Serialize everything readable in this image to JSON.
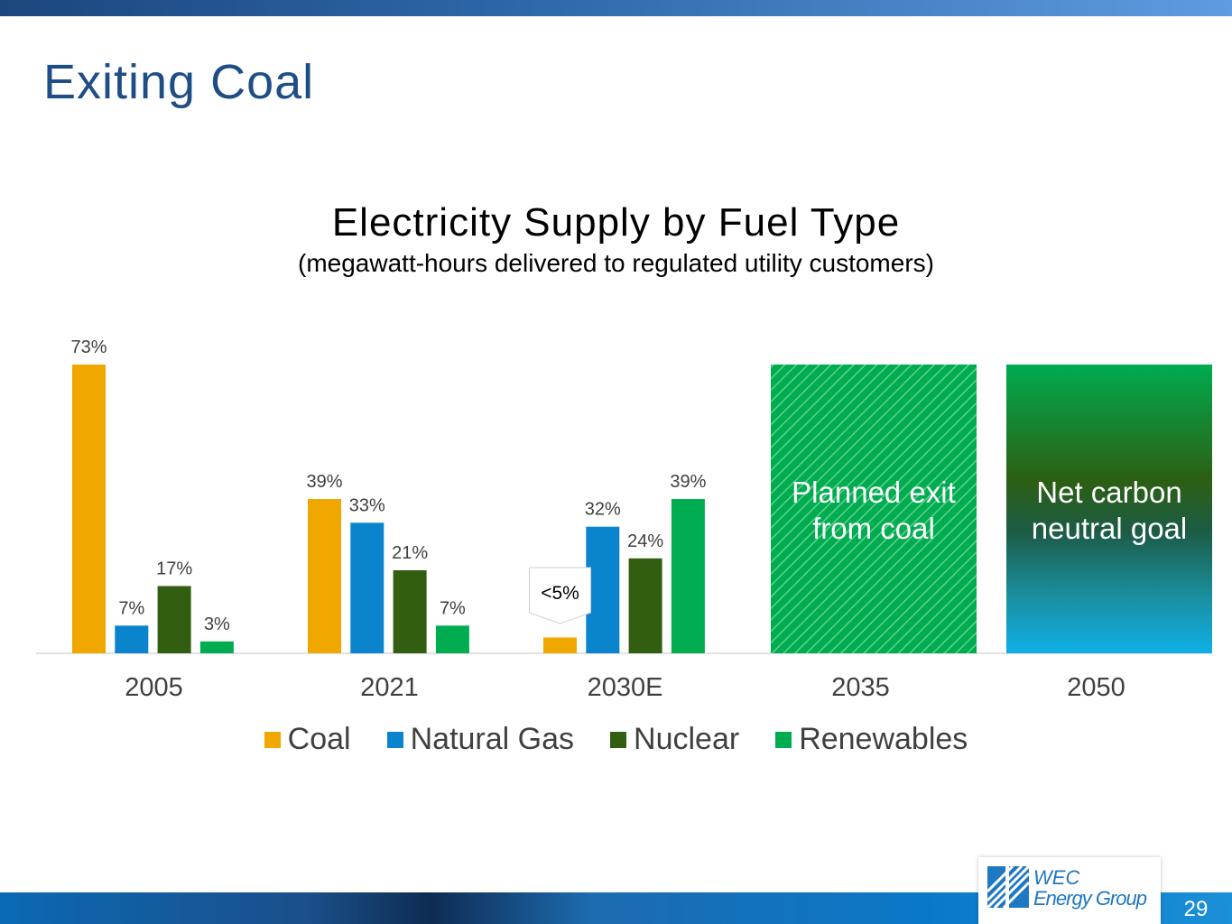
{
  "slide": {
    "title": "Exiting Coal",
    "page_number": "29",
    "logo": {
      "line1": "WEC",
      "line2": "Energy Group"
    }
  },
  "chart_data": {
    "type": "bar",
    "title": "Electricity Supply by Fuel Type",
    "subtitle": "(megawatt-hours delivered to regulated utility customers)",
    "categories": [
      "2005",
      "2021",
      "2030E",
      "2035",
      "2050"
    ],
    "series": [
      {
        "name": "Coal",
        "color": "#f0a800",
        "values": [
          73,
          39,
          4,
          null,
          null
        ],
        "labels": [
          "73%",
          "39%",
          "",
          "",
          ""
        ]
      },
      {
        "name": "Natural Gas",
        "color": "#0a84cc",
        "values": [
          7,
          33,
          32,
          null,
          null
        ],
        "labels": [
          "7%",
          "33%",
          "32%",
          "",
          ""
        ]
      },
      {
        "name": "Nuclear",
        "color": "#325e11",
        "values": [
          17,
          21,
          24,
          null,
          null
        ],
        "labels": [
          "17%",
          "21%",
          "24%",
          "",
          ""
        ]
      },
      {
        "name": "Renewables",
        "color": "#00ac50",
        "values": [
          3,
          7,
          39,
          null,
          null
        ],
        "labels": [
          "3%",
          "7%",
          "39%",
          "",
          ""
        ]
      }
    ],
    "callout": {
      "category": "2030E",
      "series": "Coal",
      "text": "<5%"
    },
    "goal_bars": [
      {
        "category": "2035",
        "text_lines": [
          "Planned exit",
          "from coal"
        ],
        "style": "hatched",
        "value": 73
      },
      {
        "category": "2050",
        "text_lines": [
          "Net carbon",
          "neutral goal"
        ],
        "style": "gradient",
        "value": 73
      }
    ],
    "ylim": [
      0,
      73
    ],
    "xlabel": "",
    "ylabel": "",
    "legend_position": "bottom"
  }
}
